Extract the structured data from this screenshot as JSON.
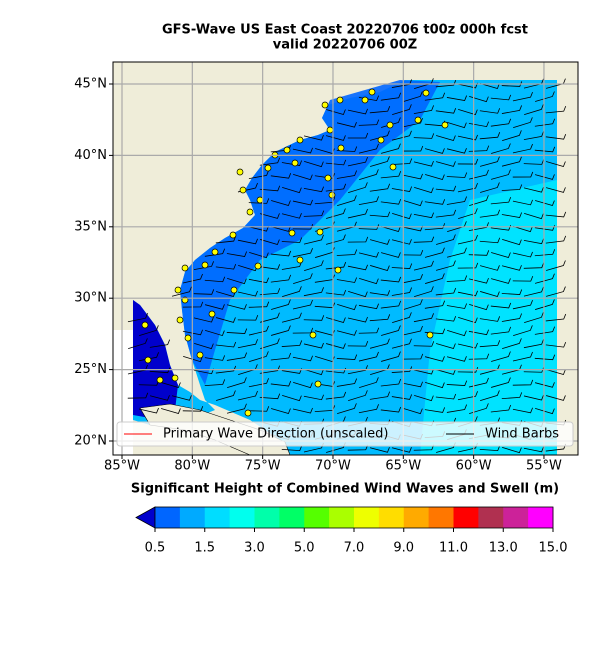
{
  "chart_data": {
    "type": "map",
    "title": "GFS-Wave US East Coast 20220706 t00z 000h fcst",
    "subtitle": "valid 20220706 00Z",
    "xlim": [
      -85.64,
      -52.58
    ],
    "ylim": [
      19.02,
      46.54
    ],
    "xticks": [
      {
        "value": -85,
        "label": "85°W"
      },
      {
        "value": -80,
        "label": "80°W"
      },
      {
        "value": -75,
        "label": "75°W"
      },
      {
        "value": -70,
        "label": "70°W"
      },
      {
        "value": -65,
        "label": "65°W"
      },
      {
        "value": -60,
        "label": "60°W"
      },
      {
        "value": -55,
        "label": "55°W"
      }
    ],
    "yticks": [
      {
        "value": 20,
        "label": "20°N"
      },
      {
        "value": 25,
        "label": "25°N"
      },
      {
        "value": 30,
        "label": "30°N"
      },
      {
        "value": 35,
        "label": "35°N"
      },
      {
        "value": 40,
        "label": "40°N"
      },
      {
        "value": 45,
        "label": "45°N"
      }
    ],
    "grid": true,
    "legend": {
      "position": "lower center",
      "entries": [
        {
          "name": "Primary Wave Direction (unscaled)",
          "color": "#ff0000"
        },
        {
          "name": "Wind Barbs",
          "color": "#000000"
        }
      ]
    },
    "colorbar": {
      "label": "Significant Height of Combined Wind Waves and Swell (m)",
      "bounds": [
        0.5,
        1,
        1.5,
        2,
        3,
        4,
        5,
        6,
        7,
        8,
        9,
        10,
        11,
        12,
        13,
        14,
        15
      ],
      "colors": [
        "#0066ff",
        "#00aaff",
        "#00ddff",
        "#00ffee",
        "#00ffaa",
        "#00ff66",
        "#55ff00",
        "#aaff00",
        "#eeff00",
        "#ffdd00",
        "#ffaa00",
        "#ff7700",
        "#ff0000",
        "#b03050",
        "#cc2299",
        "#ff00ff"
      ],
      "under_color": "#0000cc",
      "ticks": [
        0.5,
        1.5,
        {
          "value": 3,
          "label": "3.0"
        },
        {
          "value": 5,
          "label": "5.0"
        },
        {
          "value": 7,
          "label": "7.0"
        },
        {
          "value": 9,
          "label": "9.0"
        },
        {
          "value": 11,
          "label": "11.0"
        },
        {
          "value": 13,
          "label": "13.0"
        },
        {
          "value": 15,
          "label": "15.0"
        }
      ]
    }
  }
}
